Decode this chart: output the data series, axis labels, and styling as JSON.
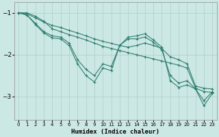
{
  "xlabel": "Humidex (Indice chaleur)",
  "bg_color": "#cce8e4",
  "grid_color": "#b0ccc8",
  "line_color": "#2e7d70",
  "xlim": [
    -0.5,
    23.5
  ],
  "ylim": [
    -3.55,
    -0.75
  ],
  "yticks": [
    -3,
    -2,
    -1
  ],
  "xticks": [
    0,
    1,
    2,
    3,
    4,
    5,
    6,
    7,
    8,
    9,
    10,
    11,
    12,
    13,
    14,
    15,
    16,
    17,
    18,
    19,
    20,
    21,
    22,
    23
  ],
  "series": [
    {
      "x": [
        0,
        1,
        2,
        3,
        4,
        5,
        6,
        7,
        8,
        9,
        10,
        11,
        12,
        13,
        14,
        15,
        16,
        17,
        18,
        19,
        20,
        21,
        22,
        23
      ],
      "y": [
        -1.0,
        -1.0,
        -1.08,
        -1.2,
        -1.38,
        -1.45,
        -1.52,
        -1.58,
        -1.65,
        -1.72,
        -1.8,
        -1.85,
        -1.9,
        -1.95,
        -2.0,
        -2.05,
        -2.1,
        -2.15,
        -2.2,
        -2.25,
        -2.32,
        -2.8,
        -2.88,
        -2.9
      ]
    },
    {
      "x": [
        0,
        1,
        2,
        3,
        4,
        5,
        6,
        7,
        8,
        9,
        10,
        11,
        12,
        13,
        14,
        15,
        16,
        17,
        18,
        19,
        20,
        21,
        22,
        23
      ],
      "y": [
        -1.0,
        -1.02,
        -1.12,
        -1.22,
        -1.3,
        -1.35,
        -1.42,
        -1.48,
        -1.55,
        -1.62,
        -1.68,
        -1.73,
        -1.78,
        -1.82,
        -1.78,
        -1.72,
        -1.78,
        -1.85,
        -2.05,
        -2.12,
        -2.22,
        -2.75,
        -2.8,
        -2.82
      ]
    },
    {
      "x": [
        0,
        1,
        2,
        3,
        4,
        5,
        6,
        7,
        8,
        9,
        10,
        11,
        12,
        13,
        14,
        15,
        16,
        17,
        18,
        19,
        20,
        21,
        22,
        23
      ],
      "y": [
        -1.0,
        -1.05,
        -1.25,
        -1.45,
        -1.55,
        -1.58,
        -1.72,
        -2.12,
        -2.35,
        -2.5,
        -2.22,
        -2.28,
        -1.78,
        -1.62,
        -1.62,
        -1.58,
        -1.7,
        -1.88,
        -2.5,
        -2.68,
        -2.62,
        -2.82,
        -3.1,
        -2.88
      ]
    },
    {
      "x": [
        0,
        1,
        2,
        3,
        4,
        5,
        6,
        7,
        8,
        9,
        10,
        11,
        12,
        13,
        14,
        15,
        16,
        17,
        18,
        19,
        20,
        21,
        22,
        23
      ],
      "y": [
        -1.0,
        -1.05,
        -1.28,
        -1.48,
        -1.6,
        -1.62,
        -1.78,
        -2.22,
        -2.5,
        -2.65,
        -2.32,
        -2.38,
        -1.78,
        -1.58,
        -1.55,
        -1.5,
        -1.65,
        -1.82,
        -2.62,
        -2.78,
        -2.72,
        -2.82,
        -3.22,
        -2.92
      ]
    }
  ]
}
